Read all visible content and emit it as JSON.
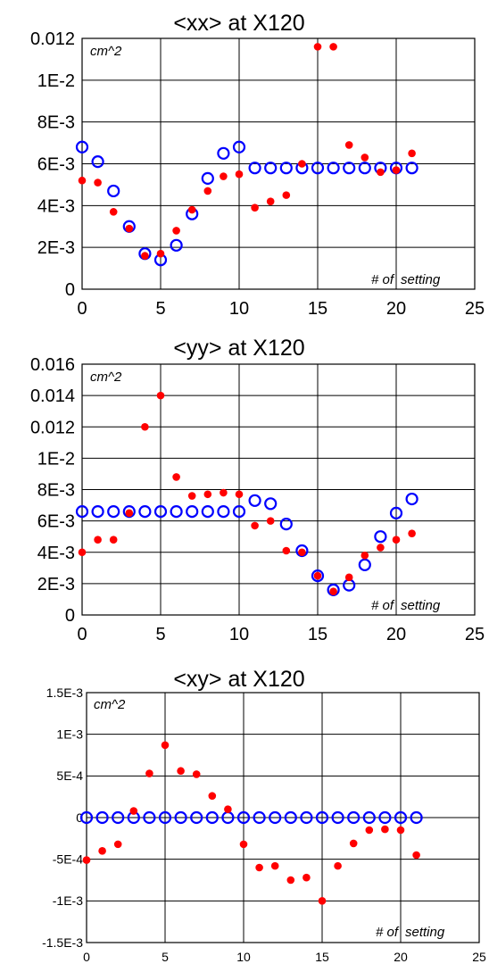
{
  "chart_data": [
    {
      "type": "scatter",
      "title": "<xx> at X120",
      "unit": "cm^2",
      "note_left": "# of",
      "note_right": "setting",
      "xlabel": "",
      "ylabel": "",
      "xlim": [
        0,
        25
      ],
      "ylim": [
        0,
        0.012
      ],
      "grid": true,
      "x_ticks": [
        "0",
        "5",
        "10",
        "15",
        "20",
        "25"
      ],
      "y_ticks": [
        "0",
        "2E-3",
        "4E-3",
        "6E-3",
        "8E-3",
        "1E-2",
        "0.012"
      ],
      "series": [
        {
          "color": "#0000ff",
          "marker": "open-circle",
          "points": [
            [
              0,
              0.0068
            ],
            [
              1,
              0.0061
            ],
            [
              2,
              0.0047
            ],
            [
              3,
              0.003
            ],
            [
              4,
              0.0017
            ],
            [
              5,
              0.0014
            ],
            [
              6,
              0.0021
            ],
            [
              7,
              0.0036
            ],
            [
              8,
              0.0053
            ],
            [
              9,
              0.0065
            ],
            [
              10,
              0.0068
            ],
            [
              11,
              0.0058
            ],
            [
              12,
              0.0058
            ],
            [
              13,
              0.0058
            ],
            [
              14,
              0.0058
            ],
            [
              15,
              0.0058
            ],
            [
              16,
              0.0058
            ],
            [
              17,
              0.0058
            ],
            [
              18,
              0.0058
            ],
            [
              19,
              0.0058
            ],
            [
              20,
              0.0058
            ],
            [
              21,
              0.0058
            ]
          ]
        },
        {
          "color": "#ff0000",
          "marker": "filled-dot",
          "points": [
            [
              0,
              0.0052
            ],
            [
              1,
              0.0051
            ],
            [
              2,
              0.0037
            ],
            [
              3,
              0.0029
            ],
            [
              4,
              0.0016
            ],
            [
              5,
              0.0017
            ],
            [
              6,
              0.0028
            ],
            [
              7,
              0.0038
            ],
            [
              8,
              0.0047
            ],
            [
              9,
              0.0054
            ],
            [
              10,
              0.0055
            ],
            [
              11,
              0.0039
            ],
            [
              12,
              0.0042
            ],
            [
              13,
              0.0045
            ],
            [
              14,
              0.006
            ],
            [
              15,
              0.0116
            ],
            [
              16,
              0.0116
            ],
            [
              17,
              0.0069
            ],
            [
              18,
              0.0063
            ],
            [
              19,
              0.0056
            ],
            [
              20,
              0.0057
            ],
            [
              21,
              0.0065
            ]
          ]
        }
      ]
    },
    {
      "type": "scatter",
      "title": "<yy> at X120",
      "unit": "cm^2",
      "note_left": "# of",
      "note_right": "setting",
      "xlabel": "",
      "ylabel": "",
      "xlim": [
        0,
        25
      ],
      "ylim": [
        0,
        0.016
      ],
      "grid": true,
      "x_ticks": [
        "0",
        "5",
        "10",
        "15",
        "20",
        "25"
      ],
      "y_ticks": [
        "0",
        "2E-3",
        "4E-3",
        "6E-3",
        "8E-3",
        "1E-2",
        "0.012",
        "0.014",
        "0.016"
      ],
      "series": [
        {
          "color": "#0000ff",
          "marker": "open-circle",
          "points": [
            [
              0,
              0.0066
            ],
            [
              1,
              0.0066
            ],
            [
              2,
              0.0066
            ],
            [
              3,
              0.0066
            ],
            [
              4,
              0.0066
            ],
            [
              5,
              0.0066
            ],
            [
              6,
              0.0066
            ],
            [
              7,
              0.0066
            ],
            [
              8,
              0.0066
            ],
            [
              9,
              0.0066
            ],
            [
              10,
              0.0066
            ],
            [
              11,
              0.0073
            ],
            [
              12,
              0.0071
            ],
            [
              13,
              0.0058
            ],
            [
              14,
              0.0041
            ],
            [
              15,
              0.0025
            ],
            [
              16,
              0.0016
            ],
            [
              17,
              0.0019
            ],
            [
              18,
              0.0032
            ],
            [
              19,
              0.005
            ],
            [
              20,
              0.0065
            ],
            [
              21,
              0.0074
            ]
          ]
        },
        {
          "color": "#ff0000",
          "marker": "filled-dot",
          "points": [
            [
              0,
              0.004
            ],
            [
              1,
              0.0048
            ],
            [
              2,
              0.0048
            ],
            [
              3,
              0.0065
            ],
            [
              4,
              0.012
            ],
            [
              5,
              0.014
            ],
            [
              6,
              0.0088
            ],
            [
              7,
              0.0076
            ],
            [
              8,
              0.0077
            ],
            [
              9,
              0.0078
            ],
            [
              10,
              0.0077
            ],
            [
              11,
              0.0057
            ],
            [
              12,
              0.006
            ],
            [
              13,
              0.0041
            ],
            [
              14,
              0.004
            ],
            [
              15,
              0.0025
            ],
            [
              16,
              0.0015
            ],
            [
              17,
              0.0024
            ],
            [
              18,
              0.0038
            ],
            [
              19,
              0.0043
            ],
            [
              20,
              0.0048
            ],
            [
              21,
              0.0052
            ]
          ]
        }
      ]
    },
    {
      "type": "scatter",
      "title": "<xy> at X120",
      "unit": "cm^2",
      "note_left": "# of",
      "note_right": "setting",
      "xlabel": "",
      "ylabel": "",
      "xlim": [
        0,
        25
      ],
      "ylim": [
        -0.0015,
        0.0015
      ],
      "grid": true,
      "x_ticks": [
        "0",
        "5",
        "10",
        "15",
        "20",
        "25"
      ],
      "y_ticks": [
        "-1.5E-3",
        "-1E-3",
        "-5E-4",
        "0",
        "5E-4",
        "1E-3",
        "1.5E-3"
      ],
      "series": [
        {
          "color": "#0000ff",
          "marker": "open-circle",
          "points": [
            [
              0,
              0
            ],
            [
              1,
              0
            ],
            [
              2,
              0
            ],
            [
              3,
              0
            ],
            [
              4,
              0
            ],
            [
              5,
              0
            ],
            [
              6,
              0
            ],
            [
              7,
              0
            ],
            [
              8,
              0
            ],
            [
              9,
              0
            ],
            [
              10,
              0
            ],
            [
              11,
              0
            ],
            [
              12,
              0
            ],
            [
              13,
              0
            ],
            [
              14,
              0
            ],
            [
              15,
              0
            ],
            [
              16,
              0
            ],
            [
              17,
              0
            ],
            [
              18,
              0
            ],
            [
              19,
              0
            ],
            [
              20,
              0
            ],
            [
              21,
              0
            ]
          ]
        },
        {
          "color": "#ff0000",
          "marker": "filled-dot",
          "points": [
            [
              0,
              -0.00051
            ],
            [
              1,
              -0.0004
            ],
            [
              2,
              -0.00032
            ],
            [
              3,
              8e-05
            ],
            [
              4,
              0.00053
            ],
            [
              5,
              0.00087
            ],
            [
              6,
              0.00056
            ],
            [
              7,
              0.00052
            ],
            [
              8,
              0.00026
            ],
            [
              9,
              0.0001
            ],
            [
              10,
              -0.00032
            ],
            [
              11,
              -0.0006
            ],
            [
              12,
              -0.00058
            ],
            [
              13,
              -0.00075
            ],
            [
              14,
              -0.00072
            ],
            [
              15,
              -0.001
            ],
            [
              16,
              -0.00058
            ],
            [
              17,
              -0.00031
            ],
            [
              18,
              -0.00015
            ],
            [
              19,
              -0.00014
            ],
            [
              20,
              -0.00015
            ],
            [
              21,
              -0.00045
            ]
          ]
        }
      ]
    }
  ]
}
